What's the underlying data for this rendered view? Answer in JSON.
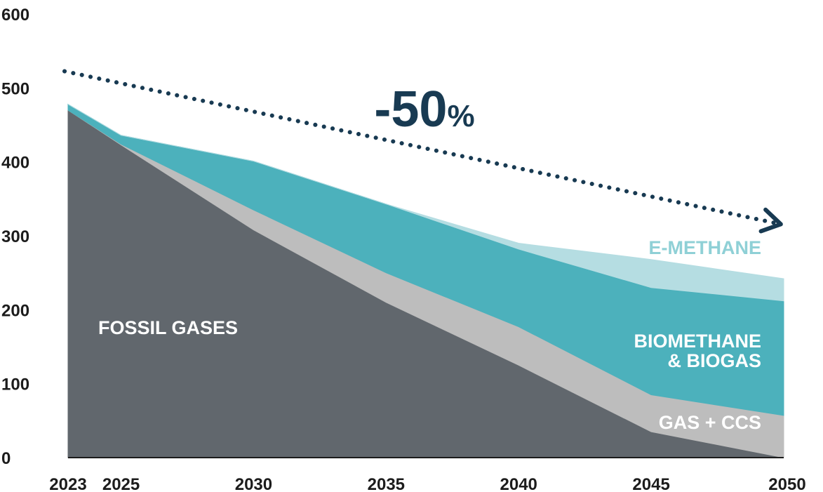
{
  "chart_data": {
    "type": "area",
    "stacked": true,
    "x": [
      2023,
      2025,
      2030,
      2035,
      2040,
      2045,
      2050
    ],
    "x_tick_labels": [
      "2023",
      "2025",
      "2030",
      "2035",
      "2040",
      "2045",
      "2050"
    ],
    "ylim": [
      0,
      600
    ],
    "y_ticks": [
      0,
      100,
      200,
      300,
      400,
      500,
      600
    ],
    "y_tick_labels": [
      "0",
      "100",
      "200",
      "300",
      "400",
      "500",
      "600"
    ],
    "grid": false,
    "series": [
      {
        "name": "FOSSIL GASES",
        "values": [
          470,
          423,
          308,
          210,
          125,
          35,
          0
        ],
        "color": "#61676d",
        "label_color": "#ffffff"
      },
      {
        "name": "GAS + CCS",
        "values": [
          0,
          1,
          27,
          40,
          52,
          50,
          57
        ],
        "color": "#bdbdbd",
        "label_color": "#ffffff"
      },
      {
        "name": "BIOMETHANE\n& BIOGAS",
        "values": [
          8,
          12,
          66,
          93,
          105,
          145,
          155
        ],
        "color": "#4cb1bc",
        "label_color": "#ffffff"
      },
      {
        "name": "E-METHANE",
        "values": [
          0,
          0,
          0,
          0,
          8,
          38,
          30
        ],
        "color": "#b5dde2",
        "label_color": "#8fd0d6"
      }
    ],
    "annotation": {
      "text": "-50",
      "suffix": "%",
      "color": "#183a52",
      "arrow_style": "dotted",
      "arrow_from": {
        "x": 2023,
        "y": 515
      },
      "arrow_to": {
        "x": 2050,
        "y": 315
      }
    },
    "axis_color": "#1c1c1c",
    "tick_color": "#1c1c1c"
  }
}
